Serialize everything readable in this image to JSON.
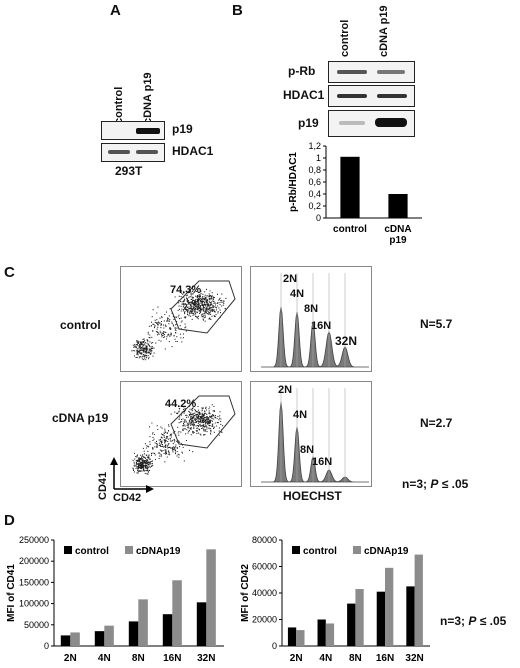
{
  "panelA": {
    "label": "A",
    "lane_labels": [
      "control",
      "cDNA p19"
    ],
    "rows": [
      {
        "label": "p19",
        "bands": [
          0.0,
          0.95
        ]
      },
      {
        "label": "HDAC1",
        "bands": [
          0.6,
          0.6
        ]
      }
    ],
    "cell_line": "293T"
  },
  "panelB": {
    "label": "B",
    "lane_labels": [
      "control",
      "cDNA p19"
    ],
    "rows": [
      {
        "label": "p-Rb",
        "bands": [
          0.55,
          0.45
        ]
      },
      {
        "label": "HDAC1",
        "bands": [
          0.65,
          0.65
        ]
      },
      {
        "label": "p19",
        "bands": [
          0.15,
          0.95
        ]
      }
    ]
  },
  "panelC": {
    "label": "C",
    "row_labels": [
      "control",
      "cDNA p19"
    ],
    "gate_percentages": [
      "74.3%",
      "44.2%"
    ],
    "ploidy_labels": [
      "2N",
      "4N",
      "8N",
      "16N",
      "32N"
    ],
    "n_values": [
      "N=5.7",
      "N=2.7"
    ],
    "x_axis": "CD42",
    "y_axis": "CD41",
    "histogram_axis": "HOECHST",
    "stats_prefix": "n=3; ",
    "stats_p": "P",
    "stats_suffix": " ≤ .05"
  },
  "panelD": {
    "label": "D",
    "stats_prefix": "n=3; ",
    "stats_p": "P",
    "stats_suffix": " ≤ .05"
  },
  "colors": {
    "control": "#000000",
    "cdna": "#8c8c8c"
  },
  "chart_data": [
    {
      "type": "bar",
      "ylabel": "p-Rb/HDAC1",
      "categories": [
        "control",
        "cDNA p19"
      ],
      "values": [
        1.02,
        0.4
      ],
      "ylim": [
        0,
        1.2
      ],
      "yticks": [
        "0",
        "0,2",
        "0,4",
        "0,6",
        "0,8",
        "1",
        "1,2"
      ]
    },
    {
      "type": "bar",
      "ylabel": "MFI of CD41",
      "categories": [
        "2N",
        "4N",
        "8N",
        "16N",
        "32N"
      ],
      "series": [
        {
          "name": "control",
          "values": [
            25000,
            35000,
            58000,
            75000,
            103000
          ]
        },
        {
          "name": "cDNAp19",
          "values": [
            32000,
            48000,
            110000,
            155000,
            228000
          ]
        }
      ],
      "ylim": [
        0,
        250000
      ],
      "yticks": [
        "0",
        "50000",
        "100000",
        "150000",
        "200000",
        "250000"
      ]
    },
    {
      "type": "bar",
      "ylabel": "MFI of CD42",
      "categories": [
        "2N",
        "4N",
        "8N",
        "16N",
        "32N"
      ],
      "series": [
        {
          "name": "control",
          "values": [
            14000,
            20000,
            32000,
            41000,
            45000
          ]
        },
        {
          "name": "cDNAp19",
          "values": [
            12000,
            17000,
            43000,
            59000,
            69000
          ]
        }
      ],
      "ylim": [
        0,
        80000
      ],
      "yticks": [
        "0",
        "20000",
        "40000",
        "60000",
        "80000"
      ]
    }
  ]
}
